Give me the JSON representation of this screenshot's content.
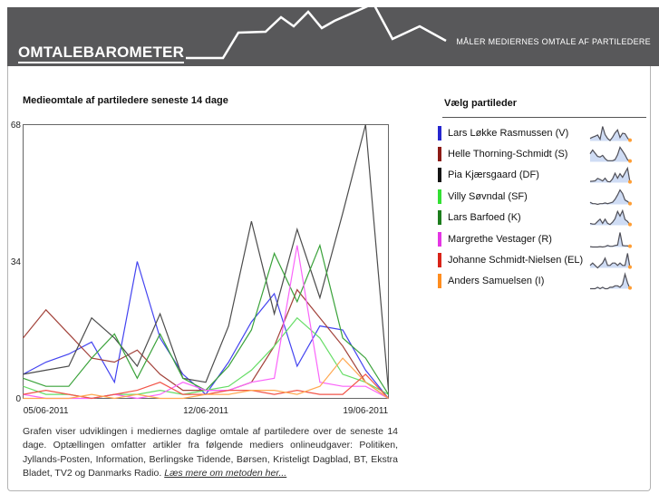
{
  "header": {
    "logo": "OMTALEBAROMETER",
    "tagline": "MÅLER MEDIERNES OMTALE AF PARTILEDERE"
  },
  "chart": {
    "title": "Medieomtale af partiledere seneste 14 dage",
    "legend_title": "Vælg partileder"
  },
  "chart_data": {
    "type": "line",
    "title": "Medieomtale af partiledere seneste 14 dage",
    "n_points": 17,
    "x_tick_labels": [
      "05/06-2011",
      "12/06-2011",
      "19/06-2011"
    ],
    "x_tick_indices": [
      1,
      8,
      15
    ],
    "y_ticks": [
      0,
      34,
      68
    ],
    "ylim": [
      0,
      68
    ],
    "grid": false,
    "legend_position": "right-panel",
    "series": [
      {
        "name": "Lars Løkke Rasmussen (V)",
        "party": "V",
        "color": "#4343f0",
        "bar_color": "#2626cf",
        "values": [
          6,
          9,
          11,
          14,
          4,
          34,
          15,
          6,
          1,
          9,
          19,
          26,
          8,
          18,
          17,
          7,
          0
        ]
      },
      {
        "name": "Helle Thorning-Schmidt (S)",
        "party": "S",
        "color": "#a2423a",
        "bar_color": "#8c1a15",
        "values": [
          15,
          22,
          16,
          10,
          9,
          12,
          6,
          2,
          2,
          2,
          4,
          13,
          27,
          20,
          13,
          4,
          0
        ]
      },
      {
        "name": "Pia Kjærsgaard (DF)",
        "party": "DF",
        "color": "#4c4c4c",
        "bar_color": "#141414",
        "values": [
          6,
          7,
          8,
          20,
          15,
          8,
          21,
          5,
          4,
          18,
          44,
          21,
          42,
          25,
          46,
          68,
          2
        ]
      },
      {
        "name": "Villy Søvndal (SF)",
        "party": "SF",
        "color": "#66dd66",
        "bar_color": "#33e033",
        "values": [
          3,
          1,
          1,
          0,
          1,
          1,
          2,
          1,
          2,
          3,
          7,
          13,
          20,
          15,
          6,
          4,
          1
        ]
      },
      {
        "name": "Lars Barfoed (K)",
        "party": "K",
        "color": "#3aa23a",
        "bar_color": "#1d7d1d",
        "values": [
          5,
          3,
          3,
          10,
          16,
          5,
          16,
          5,
          2,
          8,
          17,
          36,
          24,
          38,
          15,
          10,
          1
        ]
      },
      {
        "name": "Margrethe Vestager (R)",
        "party": "R",
        "color": "#fa64fa",
        "bar_color": "#e435e4",
        "values": [
          1,
          0,
          0,
          0,
          1,
          0,
          1,
          4,
          2,
          2,
          4,
          5,
          38,
          4,
          3,
          3,
          0
        ]
      },
      {
        "name": "Johanne Schmidt-Nielsen (EL)",
        "party": "EL",
        "color": "#f25448",
        "bar_color": "#d92318",
        "values": [
          1,
          2,
          1,
          0,
          1,
          2,
          4,
          1,
          1,
          2,
          2,
          1,
          2,
          1,
          1,
          6,
          0
        ]
      },
      {
        "name": "Anders Samuelsen (I)",
        "party": "I",
        "color": "#ffa851",
        "bar_color": "#ff8d1f",
        "values": [
          0,
          0,
          0,
          1,
          0,
          1,
          0,
          0,
          1,
          1,
          2,
          2,
          1,
          3,
          10,
          4,
          0
        ]
      }
    ],
    "sparkline_fill": "#cfdcf4",
    "sparkline_stroke": "#4e4e57",
    "sparkline_dot_color": "#ff9d33"
  },
  "footer": {
    "text": "Grafen viser udviklingen i mediernes daglige omtale af partiledere over de seneste 14 dage. Optællingen omfatter artikler fra følgende mediers onlineudgaver: Politiken, Jyllands-Posten, Information, Berlingske Tidende, Børsen, Kristeligt Dagblad, BT, Ekstra Bladet, TV2 og Danmarks Radio. ",
    "link_text": "Læs mere om metoden her..."
  }
}
